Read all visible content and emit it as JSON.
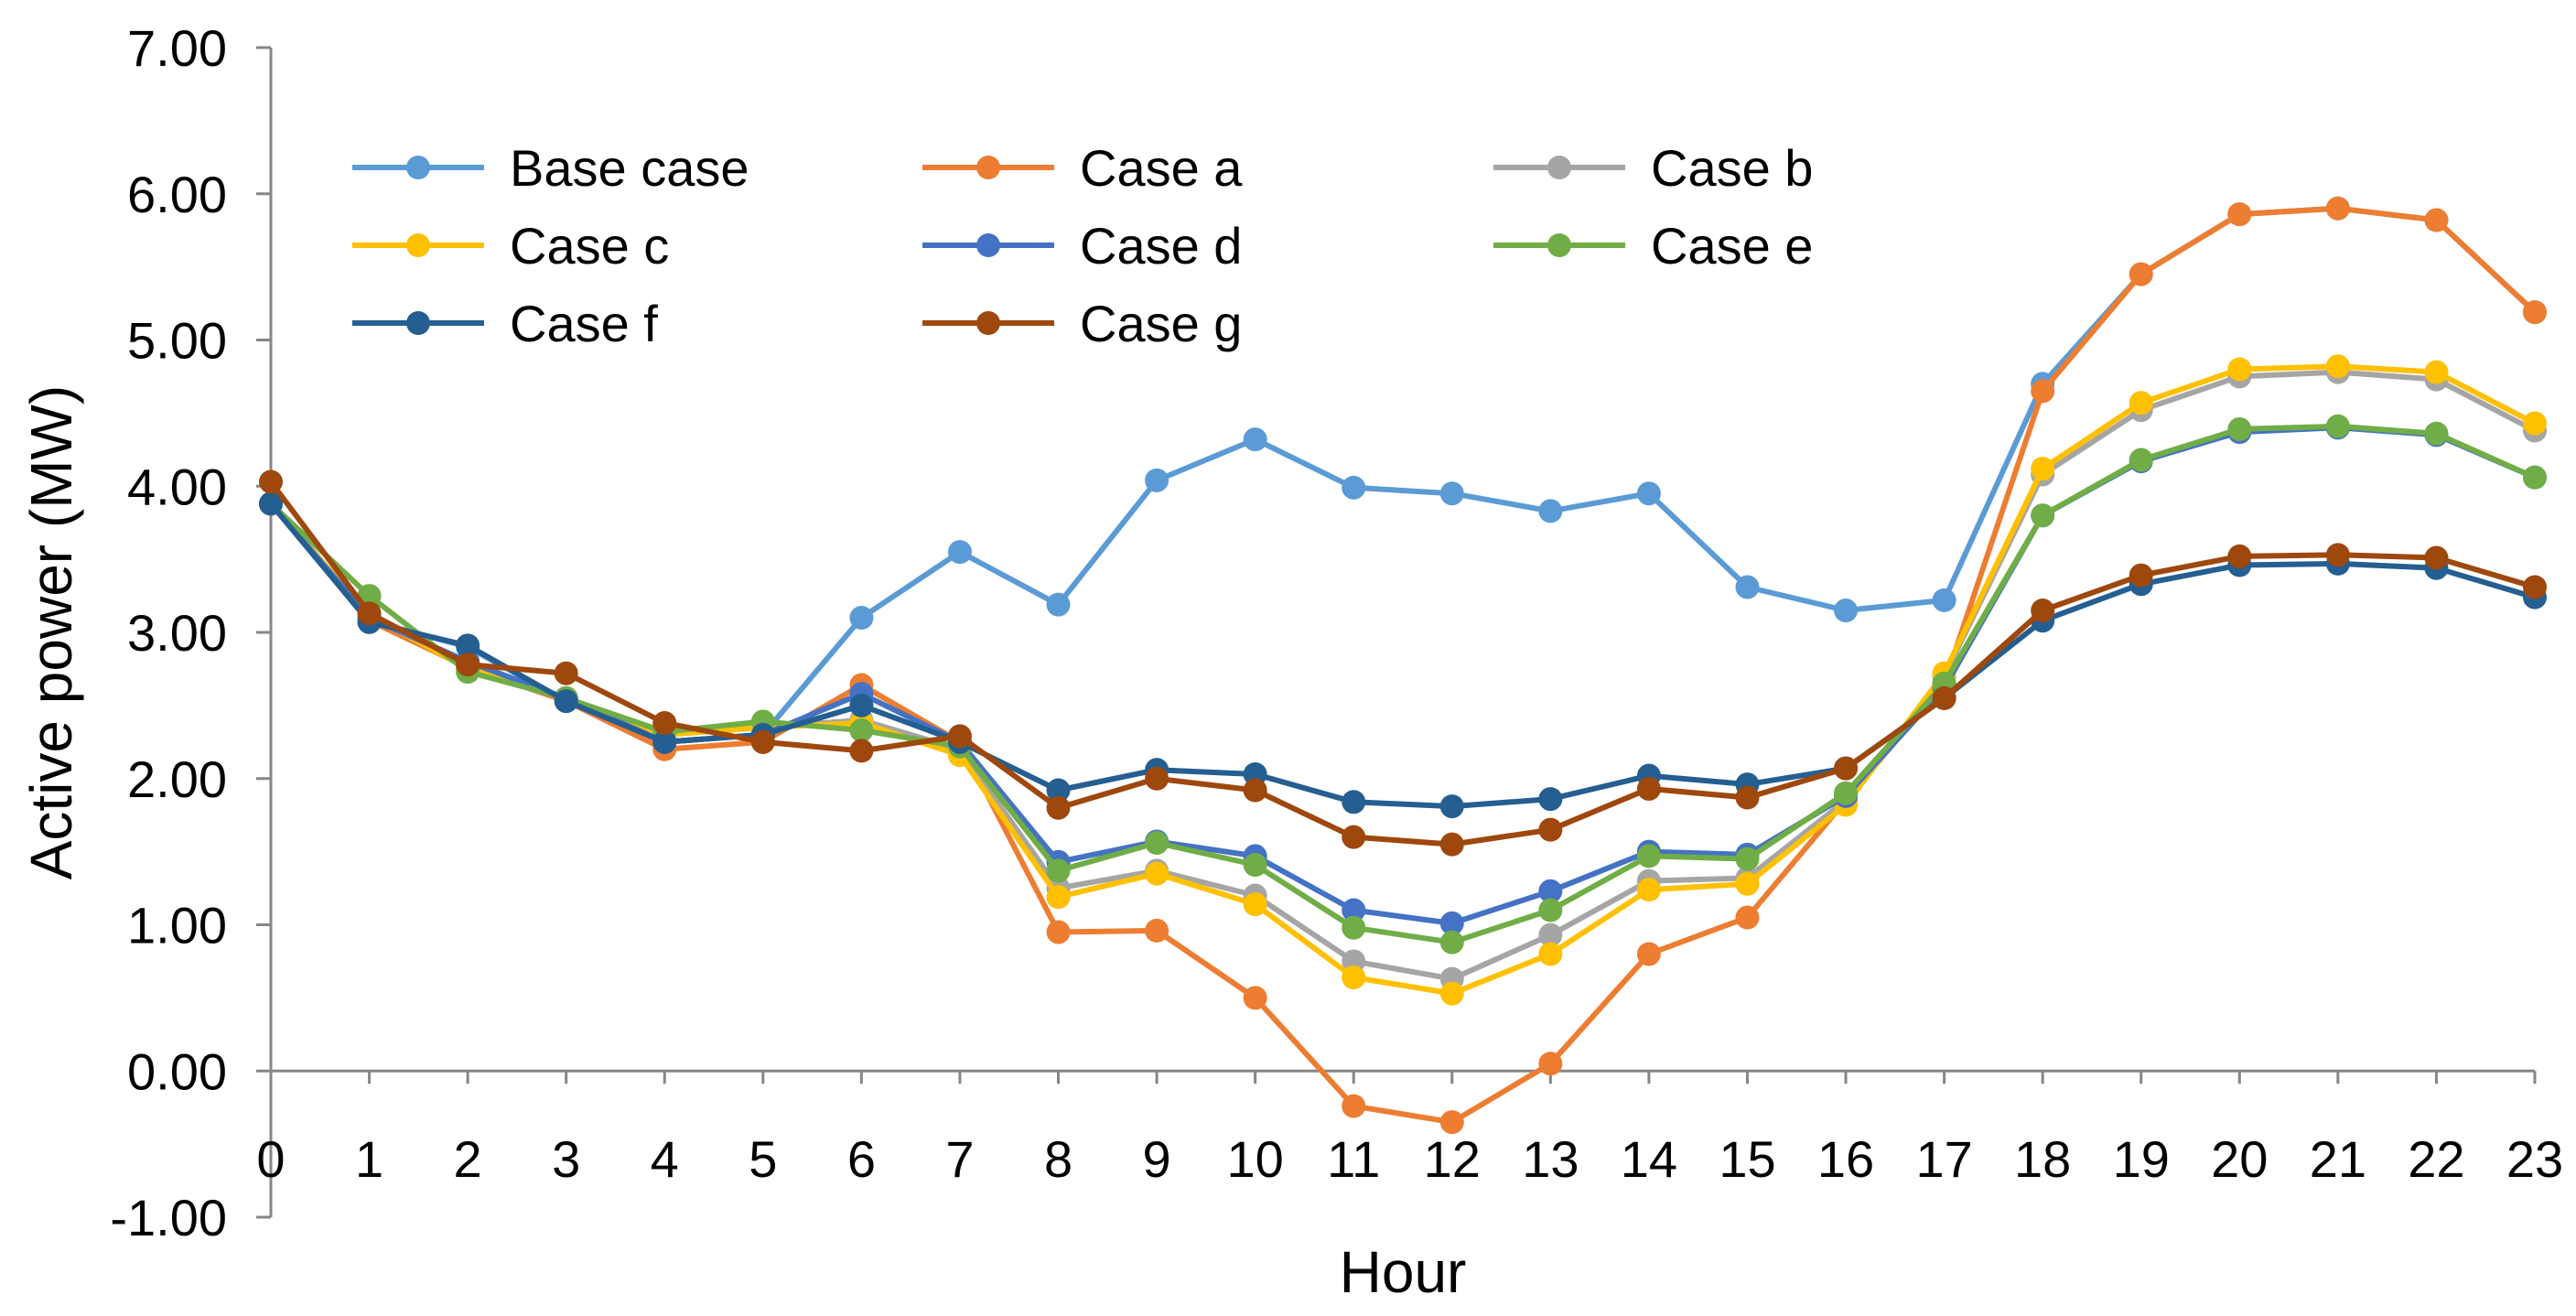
{
  "chart_data": {
    "type": "line",
    "title": "",
    "xlabel": "Hour",
    "ylabel": "Active power (MW)",
    "ylim": [
      -1.0,
      7.0
    ],
    "yticks": [
      "-1.00",
      "0.00",
      "1.00",
      "2.00",
      "3.00",
      "4.00",
      "5.00",
      "6.00",
      "7.00"
    ],
    "ytick_values": [
      -1,
      0,
      1,
      2,
      3,
      4,
      5,
      6,
      7
    ],
    "x": [
      0,
      1,
      2,
      3,
      4,
      5,
      6,
      7,
      8,
      9,
      10,
      11,
      12,
      13,
      14,
      15,
      16,
      17,
      18,
      19,
      20,
      21,
      22,
      23
    ],
    "xtick_labels": [
      "0",
      "1",
      "2",
      "3",
      "4",
      "5",
      "6",
      "7",
      "8",
      "9",
      "10",
      "11",
      "12",
      "13",
      "14",
      "15",
      "16",
      "17",
      "18",
      "19",
      "20",
      "21",
      "22",
      "23"
    ],
    "grid": false,
    "legend_position": "top-left, inside plot, 3 columns",
    "series": [
      {
        "name": "Base case",
        "color": "#5B9BD5",
        "values": [
          3.88,
          3.08,
          2.9,
          2.53,
          2.25,
          2.3,
          3.1,
          3.55,
          3.19,
          4.04,
          4.32,
          3.99,
          3.95,
          3.83,
          3.95,
          3.31,
          3.15,
          3.22,
          4.7,
          5.45,
          5.86,
          5.9,
          5.82,
          5.19
        ]
      },
      {
        "name": "Case a",
        "color": "#ED7D31",
        "values": [
          3.88,
          3.08,
          2.76,
          2.53,
          2.2,
          2.25,
          2.64,
          2.25,
          0.95,
          0.96,
          0.5,
          -0.24,
          -0.35,
          0.05,
          0.8,
          1.05,
          1.85,
          2.65,
          4.65,
          5.45,
          5.86,
          5.9,
          5.82,
          5.19
        ]
      },
      {
        "name": "Case b",
        "color": "#A5A5A5",
        "values": [
          3.88,
          3.12,
          2.75,
          2.55,
          2.3,
          2.35,
          2.4,
          2.2,
          1.25,
          1.37,
          1.2,
          0.75,
          0.63,
          0.93,
          1.3,
          1.32,
          1.85,
          2.7,
          4.08,
          4.52,
          4.75,
          4.78,
          4.73,
          4.38
        ]
      },
      {
        "name": "Case c",
        "color": "#FFC000",
        "values": [
          3.88,
          3.12,
          2.75,
          2.55,
          2.3,
          2.35,
          2.38,
          2.16,
          1.19,
          1.35,
          1.14,
          0.64,
          0.53,
          0.8,
          1.24,
          1.28,
          1.82,
          2.72,
          4.12,
          4.57,
          4.8,
          4.82,
          4.78,
          4.43
        ]
      },
      {
        "name": "Case d",
        "color": "#4472C4",
        "values": [
          3.88,
          3.1,
          2.8,
          2.55,
          2.25,
          2.3,
          2.58,
          2.25,
          1.43,
          1.57,
          1.47,
          1.1,
          1.01,
          1.23,
          1.5,
          1.48,
          1.88,
          2.62,
          3.8,
          4.17,
          4.37,
          4.4,
          4.35,
          4.06
        ]
      },
      {
        "name": "Case e",
        "color": "#70AD47",
        "values": [
          3.88,
          3.25,
          2.73,
          2.55,
          2.32,
          2.39,
          2.33,
          2.22,
          1.37,
          1.56,
          1.41,
          0.98,
          0.88,
          1.1,
          1.47,
          1.45,
          1.9,
          2.65,
          3.8,
          4.18,
          4.39,
          4.41,
          4.36,
          4.06
        ]
      },
      {
        "name": "Case f",
        "color": "#255E91",
        "values": [
          3.88,
          3.07,
          2.91,
          2.53,
          2.25,
          2.3,
          2.5,
          2.25,
          1.92,
          2.06,
          2.03,
          1.84,
          1.81,
          1.86,
          2.02,
          1.96,
          2.07,
          2.55,
          3.08,
          3.33,
          3.46,
          3.47,
          3.44,
          3.24
        ]
      },
      {
        "name": "Case g",
        "color": "#9E480E",
        "values": [
          4.03,
          3.13,
          2.78,
          2.72,
          2.38,
          2.25,
          2.19,
          2.29,
          1.8,
          2.0,
          1.92,
          1.6,
          1.55,
          1.65,
          1.93,
          1.87,
          2.07,
          2.55,
          3.15,
          3.39,
          3.52,
          3.53,
          3.51,
          3.31
        ]
      }
    ]
  }
}
